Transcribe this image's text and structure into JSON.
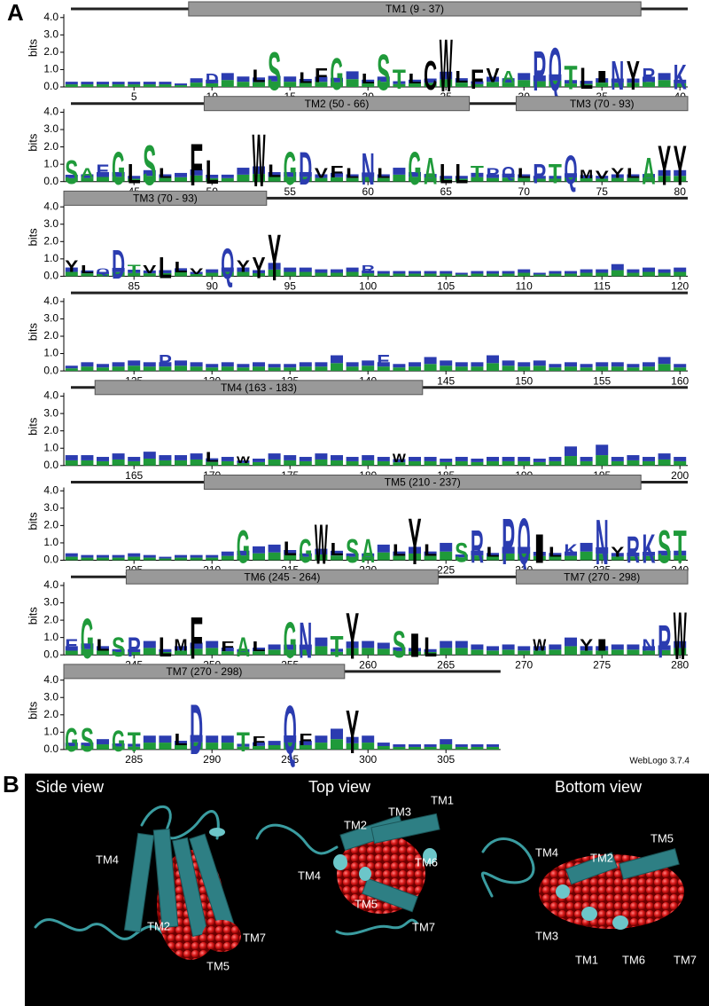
{
  "panel_a": {
    "label": "A",
    "y_label": "bits",
    "credit": "WebLogo 3.7.4",
    "ylim": [
      0,
      4.5
    ],
    "yticks": [
      {
        "value": 0,
        "label": "0.0"
      },
      {
        "value": 1,
        "label": "1.0"
      },
      {
        "value": 2,
        "label": "2.0"
      },
      {
        "value": 3,
        "label": "3.0"
      },
      {
        "value": 4,
        "label": "4.0"
      }
    ],
    "color_scheme": [
      {
        "letters": "RKDENQP",
        "color": "#2b3cb0"
      },
      {
        "letters": "SGHTA",
        "color": "#1f9a3a"
      },
      {
        "letters": "YVMCLFIW",
        "color": "#000000"
      }
    ],
    "rows": [
      {
        "xlim": [
          0.5,
          40.5
        ],
        "xticks": [
          5,
          10,
          15,
          20,
          25,
          30,
          35,
          40
        ],
        "heights": [
          0.3,
          0.3,
          0.3,
          0.3,
          0.3,
          0.3,
          0.3,
          0.2,
          0.5,
          1.0,
          0.8,
          0.6,
          1.3,
          2.9,
          0.6,
          1.1,
          1.4,
          2.4,
          0.9,
          1.0,
          2.7,
          1.5,
          1.0,
          2.2,
          4.0,
          1.2,
          1.5,
          1.4,
          1.2,
          0.8,
          3.0,
          3.3,
          1.8,
          1.6,
          1.2,
          2.2,
          2.2,
          1.4,
          0.8,
          1.9
        ],
        "letters": [
          null,
          null,
          null,
          null,
          null,
          null,
          null,
          null,
          null,
          "D",
          null,
          null,
          "L",
          "S",
          null,
          "L",
          "F",
          "G",
          null,
          "L",
          "S",
          "T",
          "L",
          "C",
          "W",
          "L",
          "F",
          "V",
          "A",
          null,
          "P",
          "Q",
          "T",
          "L",
          "I",
          "N",
          "Y",
          "R",
          null,
          "K"
        ],
        "segments": [
          {
            "label": "TM1 (9 - 37)",
            "start": 9,
            "end": 37
          }
        ]
      },
      {
        "xlim": [
          40.5,
          80.5
        ],
        "xticks": [
          45,
          50,
          55,
          60,
          65,
          70,
          75,
          80
        ],
        "heights": [
          1.8,
          1.0,
          1.3,
          2.5,
          1.5,
          3.0,
          1.0,
          0.5,
          3.2,
          1.8,
          0.4,
          0.8,
          4.0,
          1.3,
          2.5,
          2.5,
          1.0,
          1.2,
          1.0,
          2.4,
          1.0,
          0.8,
          2.5,
          2.0,
          1.5,
          1.5,
          1.2,
          1.0,
          1.1,
          1.0,
          1.5,
          1.5,
          2.2,
          0.9,
          0.8,
          1.0,
          1.0,
          2.0,
          3.0,
          3.0
        ],
        "letters": [
          "S",
          "A",
          "E",
          "G",
          "L",
          "S",
          "L",
          null,
          "F",
          "L",
          null,
          null,
          "W",
          "L",
          "G",
          "D",
          "V",
          "F",
          "L",
          "N",
          "L",
          null,
          "G",
          "A",
          "L",
          "L",
          "T",
          "P",
          "Q",
          "L",
          "P",
          "T",
          "Q",
          "M",
          "V",
          "Y",
          "L",
          "A",
          "Y",
          "Y"
        ],
        "segments": [
          {
            "label": "TM2 (50 - 66)",
            "start": 50,
            "end": 66
          },
          {
            "label": "TM3 (70 - 93)",
            "start": 70,
            "end": 93
          }
        ]
      },
      {
        "xlim": [
          80.5,
          120.5
        ],
        "xticks": [
          85,
          90,
          95,
          100,
          105,
          110,
          115,
          120
        ],
        "heights": [
          1.2,
          0.8,
          0.6,
          2.2,
          0.9,
          0.8,
          1.6,
          1.1,
          0.6,
          0.4,
          2.3,
          1.2,
          1.6,
          3.5,
          0.5,
          0.5,
          0.4,
          0.4,
          0.5,
          0.8,
          0.3,
          0.3,
          0.3,
          0.3,
          0.3,
          0.2,
          0.3,
          0.3,
          0.3,
          0.4,
          0.2,
          0.3,
          0.3,
          0.4,
          0.4,
          0.7,
          0.4,
          0.5,
          0.4,
          0.5
        ],
        "letters": [
          "Y",
          "L",
          "Q",
          "D",
          "T",
          "V",
          "L",
          "L",
          "V",
          null,
          "Q",
          "Y",
          "Y",
          "Y",
          null,
          null,
          null,
          null,
          null,
          "R",
          null,
          null,
          null,
          null,
          null,
          null,
          null,
          null,
          null,
          null,
          null,
          null,
          null,
          null,
          null,
          null,
          null,
          null,
          null,
          null
        ],
        "segments": [
          {
            "label": "TM3 (70 - 93)",
            "start": 70,
            "end": 93
          }
        ]
      },
      {
        "xlim": [
          120.5,
          160.5
        ],
        "xticks": [
          125,
          130,
          135,
          140,
          145,
          150,
          155,
          160
        ],
        "heights": [
          0.3,
          0.5,
          0.4,
          0.5,
          0.6,
          0.5,
          1.2,
          0.6,
          0.5,
          0.4,
          0.5,
          0.4,
          0.5,
          0.4,
          0.4,
          0.5,
          0.5,
          0.9,
          0.5,
          0.6,
          1.2,
          0.4,
          0.5,
          0.8,
          0.6,
          0.5,
          0.5,
          0.9,
          0.6,
          0.5,
          0.6,
          0.4,
          0.5,
          0.4,
          0.5,
          0.5,
          0.4,
          0.5,
          0.8,
          0.4
        ],
        "letters": [
          null,
          null,
          null,
          null,
          null,
          null,
          "P",
          null,
          null,
          null,
          null,
          null,
          null,
          null,
          null,
          null,
          null,
          null,
          null,
          null,
          "E",
          null,
          null,
          null,
          null,
          null,
          null,
          null,
          null,
          null,
          null,
          null,
          null,
          null,
          null,
          null,
          null,
          null,
          null,
          null
        ],
        "segments": []
      },
      {
        "xlim": [
          160.5,
          200.5
        ],
        "xticks": [
          165,
          170,
          175,
          180,
          185,
          190,
          195,
          200
        ],
        "heights": [
          0.6,
          0.6,
          0.5,
          0.7,
          0.5,
          0.8,
          0.6,
          0.6,
          0.7,
          1.0,
          0.5,
          0.7,
          0.4,
          0.7,
          0.6,
          0.5,
          0.7,
          0.6,
          0.5,
          0.6,
          0.5,
          0.9,
          0.5,
          0.5,
          0.4,
          0.5,
          0.4,
          0.5,
          0.5,
          0.5,
          0.4,
          0.5,
          1.1,
          0.5,
          1.2,
          0.5,
          0.6,
          0.5,
          0.7,
          0.5
        ],
        "letters": [
          null,
          null,
          null,
          null,
          null,
          null,
          null,
          null,
          null,
          "L",
          null,
          "W",
          null,
          null,
          null,
          null,
          null,
          null,
          null,
          null,
          null,
          "W",
          null,
          null,
          null,
          null,
          null,
          null,
          null,
          null,
          null,
          null,
          null,
          null,
          null,
          null,
          null,
          null,
          null,
          null
        ],
        "segments": [
          {
            "label": "TM4 (163 - 183)",
            "start": 163,
            "end": 183
          }
        ]
      },
      {
        "xlim": [
          200.5,
          240.5
        ],
        "xticks": [
          205,
          210,
          215,
          220,
          225,
          230,
          235,
          240
        ],
        "heights": [
          0.4,
          0.3,
          0.3,
          0.3,
          0.4,
          0.3,
          0.2,
          0.3,
          0.3,
          0.3,
          0.5,
          2.5,
          0.8,
          0.9,
          1.4,
          1.8,
          3.0,
          1.3,
          1.8,
          1.8,
          0.9,
          1.2,
          3.5,
          1.2,
          1.0,
          1.5,
          2.5,
          1.0,
          3.5,
          3.5,
          2.2,
          1.0,
          1.2,
          1.0,
          3.4,
          1.0,
          2.0,
          2.2,
          2.5,
          2.5
        ],
        "letters": [
          null,
          null,
          null,
          null,
          null,
          null,
          null,
          null,
          null,
          null,
          null,
          "G",
          null,
          null,
          "L",
          "G",
          "W",
          "L",
          "S",
          "A",
          null,
          "L",
          "Y",
          "L",
          null,
          "S",
          "R",
          "L",
          "P",
          "Q",
          "I",
          "L",
          "K",
          null,
          "N",
          "Y",
          "R",
          "K",
          "S",
          "T"
        ],
        "segments": [
          {
            "label": "TM5 (210 - 237)",
            "start": 210,
            "end": 237
          }
        ]
      },
      {
        "xlim": [
          240.5,
          280.5
        ],
        "xticks": [
          245,
          250,
          255,
          260,
          265,
          270,
          275,
          280
        ],
        "heights": [
          1.2,
          3.0,
          1.2,
          1.5,
          1.5,
          0.8,
          1.5,
          1.2,
          3.2,
          0.8,
          1.0,
          1.5,
          1.0,
          0.6,
          2.7,
          2.7,
          1.0,
          1.6,
          3.5,
          0.8,
          0.7,
          2.0,
          1.8,
          1.5,
          0.8,
          0.8,
          0.6,
          0.5,
          0.6,
          0.5,
          1.2,
          0.6,
          1.0,
          1.2,
          1.2,
          0.6,
          0.6,
          1.2,
          2.5,
          3.6
        ],
        "letters": [
          "E",
          "G",
          "L",
          "S",
          "P",
          null,
          "L",
          "M",
          "F",
          null,
          "F",
          "A",
          "L",
          null,
          "G",
          "N",
          null,
          "T",
          "Y",
          null,
          null,
          "S",
          "I",
          "L",
          null,
          null,
          null,
          null,
          null,
          null,
          "W",
          null,
          null,
          "Y",
          "I",
          null,
          null,
          "N",
          "P",
          "W"
        ],
        "segments": [
          {
            "label": "TM6 (245 - 264)",
            "start": 245,
            "end": 264
          },
          {
            "label": "TM7 (270 - 298)",
            "start": 270,
            "end": 298
          }
        ]
      },
      {
        "xlim": [
          280.5,
          308.5
        ],
        "xticks": [
          285,
          290,
          295,
          300,
          305
        ],
        "heights": [
          1.8,
          1.8,
          0.6,
          1.6,
          1.5,
          0.8,
          0.8,
          1.2,
          3.8,
          0.8,
          0.8,
          1.5,
          1.0,
          0.5,
          3.7,
          1.2,
          0.8,
          1.2,
          3.3,
          0.8,
          0.4,
          0.3,
          0.3,
          0.3,
          0.6,
          0.3,
          0.3,
          0.3
        ],
        "letters": [
          "G",
          "S",
          null,
          "G",
          "T",
          null,
          null,
          "L",
          "D",
          null,
          null,
          "T",
          "F",
          null,
          "Q",
          "F",
          null,
          null,
          "Y",
          null,
          null,
          null,
          null,
          null,
          null,
          null,
          null,
          null
        ],
        "segments": [
          {
            "label": "TM7 (270 - 298)",
            "start": 270,
            "end": 298
          }
        ]
      }
    ]
  },
  "panel_b": {
    "label": "B",
    "views": [
      {
        "title": "Side view",
        "labels": [
          "TM4",
          "TM2",
          "TM7",
          "TM5"
        ]
      },
      {
        "title": "Top view",
        "labels": [
          "TM1",
          "TM3",
          "TM2",
          "TM4",
          "TM6",
          "TM5",
          "TM7"
        ]
      },
      {
        "title": "Bottom view",
        "labels": [
          "TM5",
          "TM4",
          "TM2",
          "TM3",
          "TM1",
          "TM6",
          "TM7"
        ]
      }
    ]
  }
}
